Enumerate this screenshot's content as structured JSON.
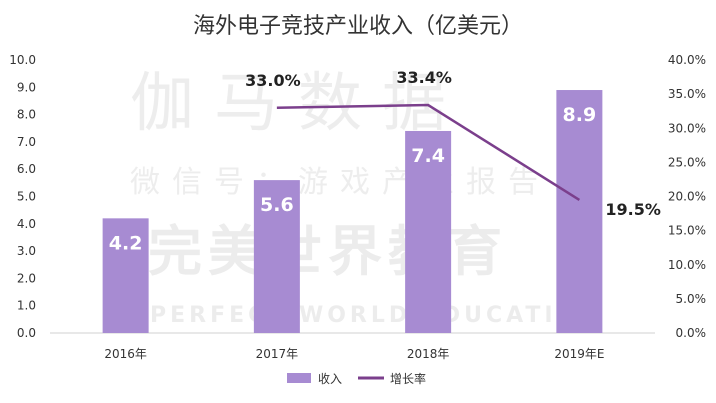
{
  "chart_data": {
    "type": "bar",
    "title": "海外电子竞技产业收入（亿美元）",
    "categories": [
      "2016年",
      "2017年",
      "2018年",
      "2019年E"
    ],
    "series": [
      {
        "name": "收入",
        "kind": "bar",
        "axis": "left",
        "values": [
          4.2,
          5.6,
          7.4,
          8.9
        ],
        "labels": [
          "4.2",
          "5.6",
          "7.4",
          "8.9"
        ],
        "color": "#a78bd2"
      },
      {
        "name": "增长率",
        "kind": "line",
        "axis": "right",
        "values": [
          null,
          33.0,
          33.4,
          19.5
        ],
        "labels": [
          "",
          "33.0%",
          "33.4%",
          "19.5%"
        ],
        "color": "#7b3f8c"
      }
    ],
    "y_left": {
      "ylim": [
        0,
        10
      ],
      "ticks": [
        "0.0",
        "1.0",
        "2.0",
        "3.0",
        "4.0",
        "5.0",
        "6.0",
        "7.0",
        "8.0",
        "9.0",
        "10.0"
      ]
    },
    "y_right": {
      "ylim": [
        0,
        40
      ],
      "ticks": [
        "0.0%",
        "5.0%",
        "10.0%",
        "15.0%",
        "20.0%",
        "25.0%",
        "30.0%",
        "35.0%",
        "40.0%"
      ]
    },
    "grid": false,
    "legend": {
      "placement": "bottom-center",
      "items": [
        "收入",
        "增长率"
      ]
    }
  },
  "watermark": {
    "line1": "伽马数据",
    "line2": "微信号：游戏产业报告",
    "line3": "完美世界教育",
    "line4": "PERFECT WORLD EDUCATION"
  }
}
